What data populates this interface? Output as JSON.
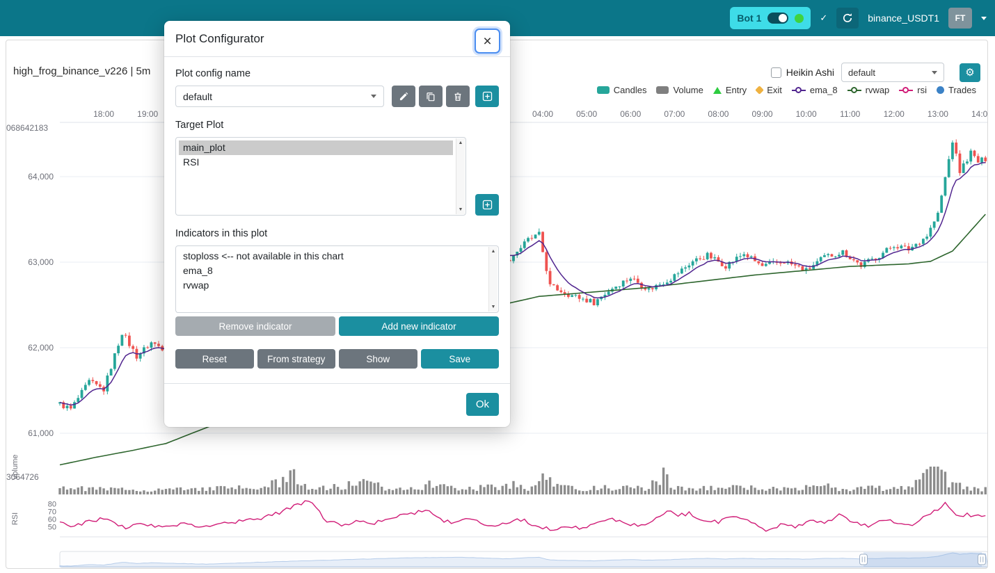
{
  "colors": {
    "navbar_bg": "#0b7689",
    "bot_box_bg": "#3edce8",
    "bot_text": "#075e6b",
    "accent_teal": "#1b8fa0",
    "button_gray": "#6c757d",
    "button_gray_disabled": "#a5abb0",
    "candle_up": "#26a69a",
    "candle_down": "#ef5350",
    "ema": "#51258f",
    "vwap": "#2d652d",
    "rsi": "#d01c77",
    "volume_bar": "#7f7f7f",
    "entry": "#2ecc40",
    "exit": "#efb241",
    "trades": "#3b82c6",
    "axis_text": "#6e7079",
    "grid": "#e9edf3",
    "online_dot": "#3fd33f",
    "focus_ring": "#4a8df0"
  },
  "navbar": {
    "bot_label": "Bot 1",
    "check_icon": "✓",
    "exchange_label": "binance_USDT1",
    "avatar_label": "FT"
  },
  "chart_header": {
    "title": "high_frog_binance_v226 | 5m",
    "heikin_ashi_label": "Heikin Ashi",
    "plot_config_select_value": "default",
    "gear_icon": "⚙",
    "legend": [
      {
        "label": "Candles",
        "marker": "rect",
        "color": "#26a69a"
      },
      {
        "label": "Volume",
        "marker": "rect",
        "color": "#7f7f7f"
      },
      {
        "label": "Entry",
        "marker": "triangle",
        "color": "#2ecc40"
      },
      {
        "label": "Exit",
        "marker": "diamond",
        "color": "#efb241"
      },
      {
        "label": "ema_8",
        "marker": "line-circle",
        "color": "#51258f"
      },
      {
        "label": "rvwap",
        "marker": "line-circle",
        "color": "#2d652d"
      },
      {
        "label": "rsi",
        "marker": "line-circle",
        "color": "#d01c77"
      },
      {
        "label": "Trades",
        "marker": "circle",
        "color": "#3b82c6"
      }
    ]
  },
  "modal": {
    "title": "Plot Configurator",
    "close_icon": "×",
    "config_name_label": "Plot config name",
    "config_select_value": "default",
    "target_plot_label": "Target Plot",
    "target_plots": [
      "main_plot",
      "RSI"
    ],
    "target_selected_index": 0,
    "indicators_label": "Indicators in this plot",
    "indicators": [
      "stoploss <-- not available in this chart",
      "ema_8",
      "rvwap"
    ],
    "buttons": {
      "remove": "Remove indicator",
      "add": "Add new indicator",
      "reset": "Reset",
      "from_strategy": "From strategy",
      "show": "Show",
      "save": "Save",
      "ok": "Ok"
    }
  },
  "chart_data": {
    "type": "candlestick",
    "title": "high_frog_binance_v226 | 5m",
    "timeframe": "5m",
    "n_candles": 254,
    "x_hour_labels": [
      {
        "i": 12,
        "label": "18:00"
      },
      {
        "i": 24,
        "label": "19:00"
      },
      {
        "i": 132,
        "label": "04:00"
      },
      {
        "i": 144,
        "label": "05:00"
      },
      {
        "i": 156,
        "label": "06:00"
      },
      {
        "i": 168,
        "label": "07:00"
      },
      {
        "i": 180,
        "label": "08:00"
      },
      {
        "i": 192,
        "label": "09:00"
      },
      {
        "i": 204,
        "label": "10:00"
      },
      {
        "i": 216,
        "label": "11:00"
      },
      {
        "i": 228,
        "label": "12:00"
      },
      {
        "i": 240,
        "label": "13:00"
      },
      {
        "i": 252,
        "label": "14:00"
      }
    ],
    "y_price_labels": [
      {
        "value": 64000,
        "label": "64,000"
      },
      {
        "value": 63000,
        "label": "63,000"
      },
      {
        "value": 62000,
        "label": "62,000"
      },
      {
        "value": 61000,
        "label": "61,000"
      }
    ],
    "overlap_label_top": "068642183",
    "overlap_label_volume": "3064726",
    "volume_axis_label": "Volume",
    "rsi_axis_label": "RSI",
    "rsi_tick_labels": [
      80,
      70,
      60,
      50
    ],
    "price_keyframes": [
      [
        0,
        61340
      ],
      [
        3,
        61280
      ],
      [
        8,
        61600
      ],
      [
        12,
        61510
      ],
      [
        17,
        62180
      ],
      [
        21,
        61900
      ],
      [
        25,
        62060
      ],
      [
        29,
        61980
      ],
      [
        40,
        61740
      ],
      [
        55,
        62200
      ],
      [
        75,
        62720
      ],
      [
        95,
        63220
      ],
      [
        110,
        63360
      ],
      [
        122,
        63000
      ],
      [
        128,
        63260
      ],
      [
        131,
        63320
      ],
      [
        134,
        62720
      ],
      [
        140,
        62610
      ],
      [
        146,
        62530
      ],
      [
        151,
        62700
      ],
      [
        156,
        62820
      ],
      [
        161,
        62680
      ],
      [
        167,
        62810
      ],
      [
        173,
        63010
      ],
      [
        177,
        63080
      ],
      [
        182,
        62960
      ],
      [
        187,
        63100
      ],
      [
        192,
        62950
      ],
      [
        198,
        63010
      ],
      [
        204,
        62900
      ],
      [
        209,
        63060
      ],
      [
        214,
        63120
      ],
      [
        219,
        62960
      ],
      [
        224,
        63080
      ],
      [
        228,
        63200
      ],
      [
        232,
        63150
      ],
      [
        237,
        63310
      ],
      [
        240,
        63560
      ],
      [
        243,
        64200
      ],
      [
        244,
        64420
      ],
      [
        246,
        64060
      ],
      [
        249,
        64280
      ],
      [
        251,
        64170
      ],
      [
        253,
        64210
      ]
    ],
    "vwap_keyframes": [
      [
        0,
        60630
      ],
      [
        10,
        60720
      ],
      [
        20,
        60800
      ],
      [
        29,
        60880
      ],
      [
        60,
        61400
      ],
      [
        100,
        62300
      ],
      [
        131,
        62600
      ],
      [
        160,
        62700
      ],
      [
        190,
        62850
      ],
      [
        216,
        62950
      ],
      [
        232,
        62980
      ],
      [
        238,
        63010
      ],
      [
        244,
        63130
      ],
      [
        248,
        63320
      ],
      [
        253,
        63560
      ]
    ],
    "rsi_keyframes": [
      [
        0,
        55
      ],
      [
        4,
        51
      ],
      [
        8,
        57
      ],
      [
        12,
        61
      ],
      [
        15,
        54
      ],
      [
        18,
        48
      ],
      [
        22,
        57
      ],
      [
        25,
        52
      ],
      [
        29,
        50
      ],
      [
        34,
        55
      ],
      [
        39,
        51
      ],
      [
        44,
        56
      ],
      [
        50,
        58
      ],
      [
        55,
        62
      ],
      [
        60,
        69
      ],
      [
        64,
        77
      ],
      [
        68,
        85
      ],
      [
        70,
        74
      ],
      [
        73,
        58
      ],
      [
        77,
        52
      ],
      [
        81,
        58
      ],
      [
        85,
        54
      ],
      [
        89,
        60
      ],
      [
        93,
        64
      ],
      [
        97,
        69
      ],
      [
        100,
        74
      ],
      [
        103,
        62
      ],
      [
        107,
        55
      ],
      [
        111,
        62
      ],
      [
        114,
        57
      ],
      [
        118,
        52
      ],
      [
        122,
        56
      ],
      [
        126,
        60
      ],
      [
        129,
        54
      ],
      [
        132,
        50
      ],
      [
        135,
        46
      ],
      [
        139,
        52
      ],
      [
        143,
        48
      ],
      [
        147,
        55
      ],
      [
        151,
        60
      ],
      [
        155,
        55
      ],
      [
        159,
        52
      ],
      [
        163,
        60
      ],
      [
        166,
        71
      ],
      [
        169,
        65
      ],
      [
        172,
        68
      ],
      [
        176,
        60
      ],
      [
        180,
        56
      ],
      [
        184,
        64
      ],
      [
        188,
        58
      ],
      [
        191,
        50
      ],
      [
        194,
        45
      ],
      [
        198,
        55
      ],
      [
        201,
        50
      ],
      [
        205,
        59
      ],
      [
        209,
        55
      ],
      [
        213,
        65
      ],
      [
        217,
        58
      ],
      [
        221,
        50
      ],
      [
        225,
        61
      ],
      [
        229,
        57
      ],
      [
        233,
        54
      ],
      [
        237,
        66
      ],
      [
        240,
        74
      ],
      [
        242,
        80
      ],
      [
        244,
        71
      ],
      [
        246,
        62
      ],
      [
        248,
        67
      ],
      [
        250,
        63
      ],
      [
        253,
        66
      ]
    ],
    "volume_env_keyframes": [
      [
        0,
        14
      ],
      [
        4,
        9
      ],
      [
        12,
        8
      ],
      [
        22,
        7
      ],
      [
        32,
        8
      ],
      [
        44,
        9
      ],
      [
        56,
        10
      ],
      [
        61,
        22
      ],
      [
        62,
        30
      ],
      [
        64,
        26
      ],
      [
        66,
        20
      ],
      [
        69,
        9
      ],
      [
        76,
        11
      ],
      [
        83,
        17
      ],
      [
        90,
        9
      ],
      [
        98,
        12
      ],
      [
        102,
        15
      ],
      [
        110,
        9
      ],
      [
        118,
        11
      ],
      [
        124,
        15
      ],
      [
        129,
        9
      ],
      [
        133,
        30
      ],
      [
        136,
        11
      ],
      [
        144,
        9
      ],
      [
        152,
        10
      ],
      [
        160,
        9
      ],
      [
        165,
        28
      ],
      [
        168,
        10
      ],
      [
        176,
        9
      ],
      [
        184,
        10
      ],
      [
        192,
        9
      ],
      [
        200,
        8
      ],
      [
        208,
        18
      ],
      [
        212,
        8
      ],
      [
        220,
        9
      ],
      [
        228,
        10
      ],
      [
        234,
        16
      ],
      [
        236,
        30
      ],
      [
        238,
        38
      ],
      [
        240,
        34
      ],
      [
        242,
        24
      ],
      [
        244,
        16
      ],
      [
        247,
        12
      ],
      [
        250,
        9
      ],
      [
        253,
        8
      ]
    ]
  }
}
